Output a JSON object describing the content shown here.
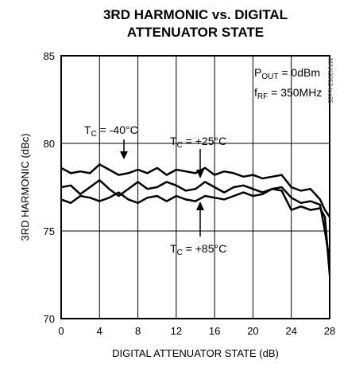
{
  "chart_data": {
    "type": "line",
    "title": [
      "3RD HARMONIC vs. DIGITAL",
      "ATTENUATOR STATE"
    ],
    "xlabel": "DIGITAL ATTENUATOR STATE (dB)",
    "ylabel": "3RD HARMONIC (dBc)",
    "xlim": [
      0,
      28
    ],
    "ylim": [
      70,
      85
    ],
    "xticks": [
      0,
      4,
      8,
      12,
      16,
      20,
      24,
      28
    ],
    "yticks": [
      70,
      75,
      80,
      85
    ],
    "grid": true,
    "conditions": [
      {
        "main": "P",
        "sub": "OUT",
        "rest": " = 0dBm"
      },
      {
        "main": "f",
        "sub": "RF",
        "rest": " = 350MHz"
      }
    ],
    "code": "MAX2062 toc35",
    "series": [
      {
        "label": {
          "main": "T",
          "sub": "C",
          "rest": " = -40°C"
        },
        "x": [
          0,
          1,
          2,
          3,
          4,
          5,
          6,
          7,
          8,
          9,
          10,
          11,
          12,
          13,
          14,
          15,
          16,
          17,
          18,
          19,
          20,
          21,
          22,
          23,
          24,
          25,
          26,
          27,
          27.5,
          28
        ],
        "y": [
          78.6,
          78.3,
          78.4,
          78.3,
          78.8,
          78.5,
          78.2,
          78.3,
          78.5,
          78.3,
          78.6,
          78.2,
          78.5,
          78.4,
          78.3,
          78.6,
          78.2,
          78.4,
          78.3,
          78.1,
          78.2,
          78.0,
          78.1,
          78.2,
          77.5,
          77.3,
          77.4,
          76.8,
          76.2,
          75.8
        ]
      },
      {
        "label": {
          "main": "T",
          "sub": "C",
          "rest": " = +25°C"
        },
        "x": [
          0,
          1,
          2,
          3,
          4,
          5,
          6,
          7,
          8,
          9,
          10,
          11,
          12,
          13,
          14,
          15,
          16,
          17,
          18,
          19,
          20,
          21,
          22,
          23,
          24,
          25,
          26,
          27,
          27.5,
          28
        ],
        "y": [
          77.5,
          77.6,
          77.1,
          77.5,
          77.9,
          77.4,
          77.0,
          77.4,
          77.8,
          77.4,
          77.5,
          77.8,
          77.6,
          77.3,
          77.4,
          77.8,
          77.5,
          77.2,
          77.5,
          77.6,
          77.4,
          77.2,
          77.4,
          77.5,
          76.9,
          76.6,
          76.7,
          76.5,
          75.0,
          73.3
        ]
      },
      {
        "label": {
          "main": "T",
          "sub": "C",
          "rest": " = +85°C"
        },
        "x": [
          0,
          1,
          2,
          3,
          4,
          5,
          6,
          7,
          8,
          9,
          10,
          11,
          12,
          13,
          14,
          15,
          16,
          17,
          18,
          19,
          20,
          21,
          22,
          23,
          24,
          25,
          26,
          27,
          27.5,
          28
        ],
        "y": [
          76.8,
          76.6,
          77.0,
          76.9,
          76.7,
          76.9,
          77.2,
          76.8,
          76.6,
          76.9,
          77.0,
          76.7,
          77.0,
          76.8,
          76.7,
          77.0,
          76.9,
          76.8,
          77.0,
          77.2,
          77.0,
          77.1,
          77.4,
          77.3,
          76.2,
          76.4,
          76.2,
          76.3,
          75.8,
          72.5
        ]
      }
    ]
  }
}
